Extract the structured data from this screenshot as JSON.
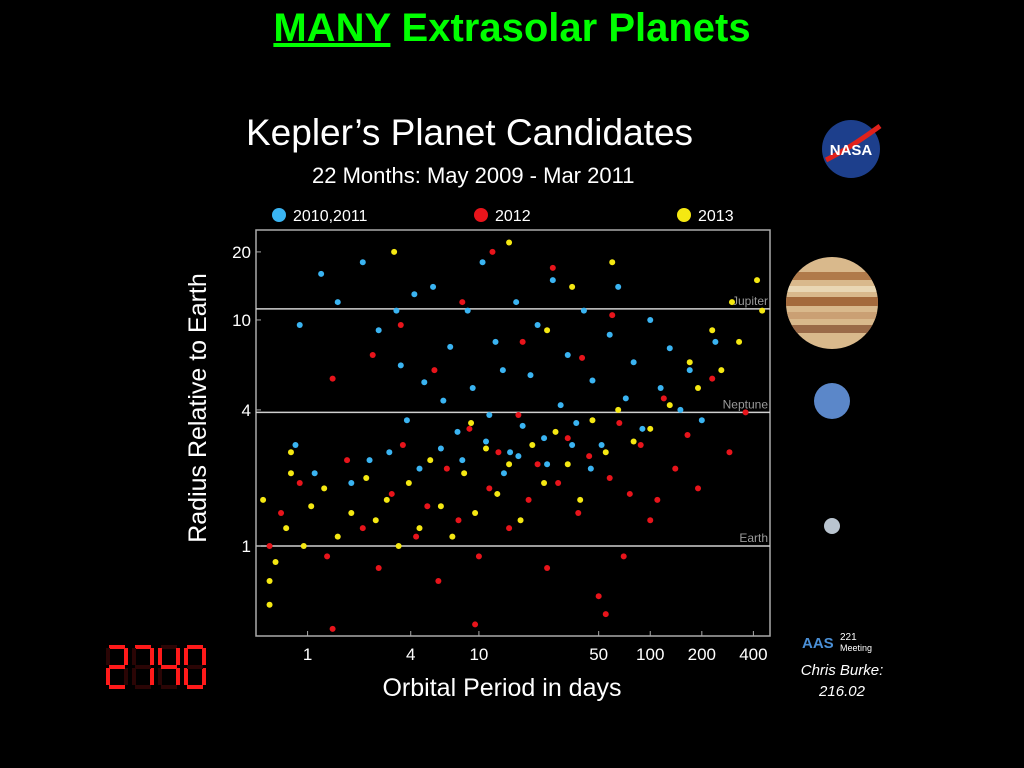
{
  "slide_title": {
    "highlight": "MANY",
    "rest": " Extrasolar Planets"
  },
  "credit": {
    "line1": "Chris Burke:",
    "line2": "216.02"
  },
  "counter": {
    "value": "2740"
  },
  "aas_logo": {
    "letters": "AAS",
    "meeting_number": "221",
    "meeting_label": "Meeting"
  },
  "nasa_logo": {
    "text": "NASA"
  },
  "planet_icons": [
    "jupiter-image",
    "neptune-image",
    "earth-image"
  ],
  "chart_data": {
    "type": "scatter",
    "title": "Kepler’s Planet Candidates",
    "subtitle": "22 Months: May 2009 - Mar 2011",
    "xlabel": "Orbital Period in days",
    "ylabel": "Radius Relative to Earth",
    "x_scale": "log",
    "y_scale": "log",
    "xlim": [
      0.5,
      500
    ],
    "ylim": [
      0.4,
      25
    ],
    "x_ticks": [
      1,
      4,
      10,
      50,
      100,
      200,
      400
    ],
    "y_ticks": [
      1,
      4,
      10,
      20
    ],
    "reference_lines": [
      {
        "label": "Jupiter",
        "y": 11.2
      },
      {
        "label": "Neptune",
        "y": 3.9
      },
      {
        "label": "Earth",
        "y": 1.0
      }
    ],
    "legend_position": "top",
    "series": [
      {
        "name": "2010,2011",
        "color": "#3ab4f2",
        "points": [
          [
            0.9,
            9.5
          ],
          [
            1.2,
            16
          ],
          [
            1.5,
            12
          ],
          [
            2.1,
            18
          ],
          [
            2.6,
            9
          ],
          [
            3.3,
            11
          ],
          [
            3.5,
            6.3
          ],
          [
            3.8,
            3.6
          ],
          [
            4.2,
            13
          ],
          [
            4.8,
            5.3
          ],
          [
            5.4,
            14
          ],
          [
            6.2,
            4.4
          ],
          [
            6.8,
            7.6
          ],
          [
            7.5,
            3.2
          ],
          [
            8.6,
            11
          ],
          [
            9.2,
            5
          ],
          [
            10.5,
            18
          ],
          [
            11.5,
            3.8
          ],
          [
            12.5,
            8
          ],
          [
            13.8,
            6
          ],
          [
            15.2,
            2.6
          ],
          [
            16.5,
            12
          ],
          [
            18,
            3.4
          ],
          [
            20,
            5.7
          ],
          [
            22,
            9.5
          ],
          [
            24,
            3
          ],
          [
            27,
            15
          ],
          [
            30,
            4.2
          ],
          [
            33,
            7
          ],
          [
            37,
            3.5
          ],
          [
            41,
            11
          ],
          [
            46,
            5.4
          ],
          [
            52,
            2.8
          ],
          [
            58,
            8.6
          ],
          [
            65,
            14
          ],
          [
            72,
            4.5
          ],
          [
            80,
            6.5
          ],
          [
            90,
            3.3
          ],
          [
            100,
            10
          ],
          [
            115,
            5
          ],
          [
            130,
            7.5
          ],
          [
            150,
            4
          ],
          [
            170,
            6
          ],
          [
            200,
            3.6
          ],
          [
            240,
            8
          ],
          [
            0.85,
            2.8
          ],
          [
            1.1,
            2.1
          ],
          [
            1.8,
            1.9
          ],
          [
            2.3,
            2.4
          ],
          [
            3,
            2.6
          ],
          [
            4.5,
            2.2
          ],
          [
            6,
            2.7
          ],
          [
            8,
            2.4
          ],
          [
            11,
            2.9
          ],
          [
            14,
            2.1
          ],
          [
            17,
            2.5
          ],
          [
            25,
            2.3
          ],
          [
            35,
            2.8
          ],
          [
            45,
            2.2
          ]
        ]
      },
      {
        "name": "2012",
        "color": "#e8141b",
        "points": [
          [
            0.7,
            1.4
          ],
          [
            0.9,
            1.9
          ],
          [
            1.3,
            0.9
          ],
          [
            1.7,
            2.4
          ],
          [
            2.1,
            1.2
          ],
          [
            2.6,
            0.8
          ],
          [
            3.1,
            1.7
          ],
          [
            3.6,
            2.8
          ],
          [
            4.3,
            1.1
          ],
          [
            5,
            1.5
          ],
          [
            5.8,
            0.7
          ],
          [
            6.5,
            2.2
          ],
          [
            7.6,
            1.3
          ],
          [
            8.8,
            3.3
          ],
          [
            10,
            0.9
          ],
          [
            11.5,
            1.8
          ],
          [
            13,
            2.6
          ],
          [
            15,
            1.2
          ],
          [
            17,
            3.8
          ],
          [
            19.5,
            1.6
          ],
          [
            22,
            2.3
          ],
          [
            25,
            0.8
          ],
          [
            29,
            1.9
          ],
          [
            33,
            3
          ],
          [
            38,
            1.4
          ],
          [
            44,
            2.5
          ],
          [
            50,
            0.6
          ],
          [
            58,
            2
          ],
          [
            66,
            3.5
          ],
          [
            76,
            1.7
          ],
          [
            88,
            2.8
          ],
          [
            100,
            1.3
          ],
          [
            120,
            4.5
          ],
          [
            140,
            2.2
          ],
          [
            165,
            3.1
          ],
          [
            190,
            1.8
          ],
          [
            230,
            5.5
          ],
          [
            290,
            2.6
          ],
          [
            360,
            3.9
          ],
          [
            1.4,
            5.5
          ],
          [
            2.4,
            7
          ],
          [
            3.5,
            9.5
          ],
          [
            5.5,
            6
          ],
          [
            8,
            12
          ],
          [
            12,
            20
          ],
          [
            18,
            8
          ],
          [
            27,
            17
          ],
          [
            40,
            6.8
          ],
          [
            60,
            10.5
          ],
          [
            9.5,
            0.45
          ],
          [
            55,
            0.5
          ],
          [
            1.4,
            0.43
          ],
          [
            0.6,
            1.0
          ],
          [
            70,
            0.9
          ],
          [
            110,
            1.6
          ]
        ]
      },
      {
        "name": "2013",
        "color": "#f5e812",
        "points": [
          [
            0.55,
            1.6
          ],
          [
            0.6,
            0.7
          ],
          [
            0.65,
            0.85
          ],
          [
            0.75,
            1.2
          ],
          [
            0.8,
            2.1
          ],
          [
            0.95,
            1.0
          ],
          [
            1.05,
            1.5
          ],
          [
            1.25,
            1.8
          ],
          [
            1.5,
            1.1
          ],
          [
            1.8,
            1.4
          ],
          [
            2.2,
            2.0
          ],
          [
            2.5,
            1.3
          ],
          [
            2.9,
            1.6
          ],
          [
            3.4,
            1.0
          ],
          [
            3.9,
            1.9
          ],
          [
            4.5,
            1.2
          ],
          [
            5.2,
            2.4
          ],
          [
            6,
            1.5
          ],
          [
            7,
            1.1
          ],
          [
            8.2,
            2.1
          ],
          [
            9.5,
            1.4
          ],
          [
            11,
            2.7
          ],
          [
            12.8,
            1.7
          ],
          [
            15,
            2.3
          ],
          [
            17.5,
            1.3
          ],
          [
            20.5,
            2.8
          ],
          [
            24,
            1.9
          ],
          [
            28,
            3.2
          ],
          [
            33,
            2.3
          ],
          [
            39,
            1.6
          ],
          [
            46,
            3.6
          ],
          [
            55,
            2.6
          ],
          [
            65,
            4
          ],
          [
            80,
            2.9
          ],
          [
            100,
            3.3
          ],
          [
            130,
            4.2
          ],
          [
            170,
            6.5
          ],
          [
            230,
            9
          ],
          [
            300,
            12
          ],
          [
            420,
            15
          ],
          [
            450,
            11
          ],
          [
            330,
            8
          ],
          [
            260,
            6
          ],
          [
            190,
            5
          ],
          [
            3.2,
            20
          ],
          [
            15,
            22
          ],
          [
            35,
            14
          ],
          [
            60,
            18
          ],
          [
            25,
            9
          ],
          [
            9,
            3.5
          ],
          [
            0.6,
            0.55
          ],
          [
            0.8,
            2.6
          ]
        ]
      }
    ]
  }
}
